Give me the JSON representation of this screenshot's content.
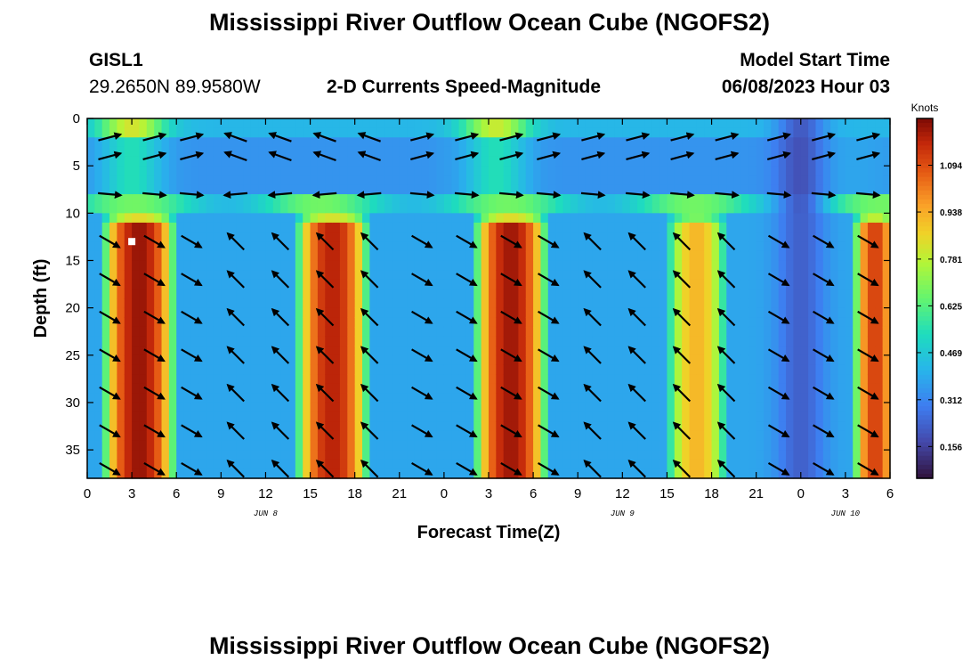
{
  "page": {
    "title": "Mississippi River Outflow Ocean Cube (NGOFS2)",
    "title_bottom": "Mississippi River Outflow Ocean Cube (NGOFS2)"
  },
  "station": {
    "id": "GISL1",
    "location": "29.2650N  89.9580W"
  },
  "model": {
    "label": "Model Start Time",
    "start": "06/08/2023 Hour 03"
  },
  "chart_data": {
    "type": "heatmap",
    "title": "2-D Currents Speed-Magnitude",
    "xlabel": "Forecast Time(Z)",
    "ylabel": "Depth (ft)",
    "x_hours_range": [
      0,
      54
    ],
    "ylim": [
      0,
      38
    ],
    "y_inverted": true,
    "x_ticks": [
      {
        "hour": 0,
        "label": "0"
      },
      {
        "hour": 3,
        "label": "3"
      },
      {
        "hour": 6,
        "label": "6"
      },
      {
        "hour": 9,
        "label": "9"
      },
      {
        "hour": 12,
        "label": "12"
      },
      {
        "hour": 15,
        "label": "15"
      },
      {
        "hour": 18,
        "label": "18"
      },
      {
        "hour": 21,
        "label": "21"
      },
      {
        "hour": 24,
        "label": "0"
      },
      {
        "hour": 27,
        "label": "3"
      },
      {
        "hour": 30,
        "label": "6"
      },
      {
        "hour": 33,
        "label": "9"
      },
      {
        "hour": 36,
        "label": "12"
      },
      {
        "hour": 39,
        "label": "15"
      },
      {
        "hour": 42,
        "label": "18"
      },
      {
        "hour": 45,
        "label": "21"
      },
      {
        "hour": 48,
        "label": "0"
      },
      {
        "hour": 51,
        "label": "3"
      },
      {
        "hour": 54,
        "label": "6"
      }
    ],
    "y_ticks": [
      {
        "depth": 0,
        "label": "0"
      },
      {
        "depth": 5,
        "label": "5"
      },
      {
        "depth": 10,
        "label": "10"
      },
      {
        "depth": 15,
        "label": "15"
      },
      {
        "depth": 20,
        "label": "20"
      },
      {
        "depth": 25,
        "label": "25"
      },
      {
        "depth": 30,
        "label": "30"
      },
      {
        "depth": 35,
        "label": "35"
      }
    ],
    "date_labels": [
      {
        "hour": 12,
        "label": "JUN 8"
      },
      {
        "hour": 36,
        "label": "JUN 9"
      },
      {
        "hour": 51,
        "label": "JUN 10"
      }
    ],
    "colorbar": {
      "label": "Knots",
      "ticks": [
        "1.094",
        "0.938",
        "0.781",
        "0.625",
        "0.469",
        "0.312",
        "0.156"
      ],
      "tick_values": [
        1.094,
        0.938,
        0.781,
        0.625,
        0.469,
        0.312,
        0.156
      ],
      "range": [
        0.05,
        1.25
      ],
      "colormap": "turbo"
    },
    "grid": false,
    "speed_field": {
      "deep_lobes": [
        {
          "hour": 3.5,
          "half_width_h": 2.7,
          "peak": 1.22
        },
        {
          "hour": 16.5,
          "half_width_h": 2.7,
          "peak": 1.18
        },
        {
          "hour": 28.5,
          "half_width_h": 2.7,
          "peak": 1.21
        },
        {
          "hour": 41.0,
          "half_width_h": 2.3,
          "peak": 0.92
        },
        {
          "hour": 53.0,
          "half_width_h": 1.6,
          "peak": 1.12
        }
      ],
      "deep_background": 0.38,
      "surface_bands": [
        {
          "hour": 3.0,
          "peak": 0.82
        },
        {
          "hour": 27.5,
          "peak": 0.8
        }
      ],
      "surface_background": 0.42,
      "low_zone": {
        "hour": 48.0,
        "value": 0.12
      }
    },
    "vectors": {
      "columns_hours": [
        1.5,
        4.5,
        7,
        10,
        13,
        16,
        19,
        22.5,
        25.5,
        28.5,
        31,
        34,
        37,
        40,
        43,
        46.5,
        49.5,
        52.5
      ],
      "rows_depth": [
        2,
        4,
        8,
        13,
        17,
        21,
        25,
        29,
        33,
        37
      ]
    }
  }
}
